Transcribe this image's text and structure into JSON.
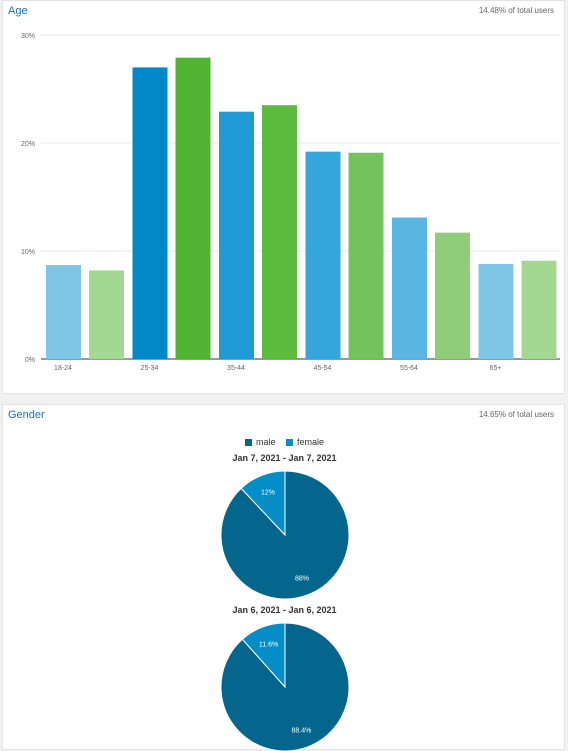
{
  "age": {
    "title": "Age",
    "meta": "14.48% of total users"
  },
  "gender": {
    "title": "Gender",
    "meta": "14.65% of total users"
  },
  "chart_data": [
    {
      "type": "bar",
      "title": "Age",
      "categories": [
        "18-24",
        "25-34",
        "35-44",
        "45-54",
        "55-64",
        "65+"
      ],
      "series": [
        {
          "values": [
            8.7,
            27.0,
            22.9,
            19.2,
            13.1,
            8.8
          ],
          "colors": [
            "#7dc6e6",
            "#0288c9",
            "#1f9ad5",
            "#35a6db",
            "#5ab5e0",
            "#7dc6e6"
          ]
        },
        {
          "values": [
            8.2,
            27.9,
            23.5,
            19.1,
            11.7,
            9.1
          ],
          "colors": [
            "#a3d893",
            "#50b432",
            "#5cba3c",
            "#74c25d",
            "#8fcd7a",
            "#a3d893"
          ]
        }
      ],
      "ylim": [
        0,
        30
      ],
      "yticks": [
        "0%",
        "10%",
        "20%",
        "30%"
      ],
      "ytick_values": [
        0,
        10,
        20,
        30
      ],
      "grid": true
    },
    {
      "type": "pie",
      "title": "Jan 7, 2021 - Jan 7, 2021",
      "legend": [
        {
          "label": "male",
          "color": "#05668d"
        },
        {
          "label": "female",
          "color": "#058dc7"
        }
      ],
      "slices": [
        {
          "label": "male",
          "value": 88,
          "text": "88%",
          "color": "#05668d"
        },
        {
          "label": "female",
          "value": 12,
          "text": "12%",
          "color": "#058dc7"
        }
      ]
    },
    {
      "type": "pie",
      "title": "Jan 6, 2021 - Jan 6, 2021",
      "slices": [
        {
          "label": "male",
          "value": 88.4,
          "text": "88.4%",
          "color": "#05668d"
        },
        {
          "label": "female",
          "value": 11.6,
          "text": "11.6%",
          "color": "#058dc7"
        }
      ]
    }
  ]
}
